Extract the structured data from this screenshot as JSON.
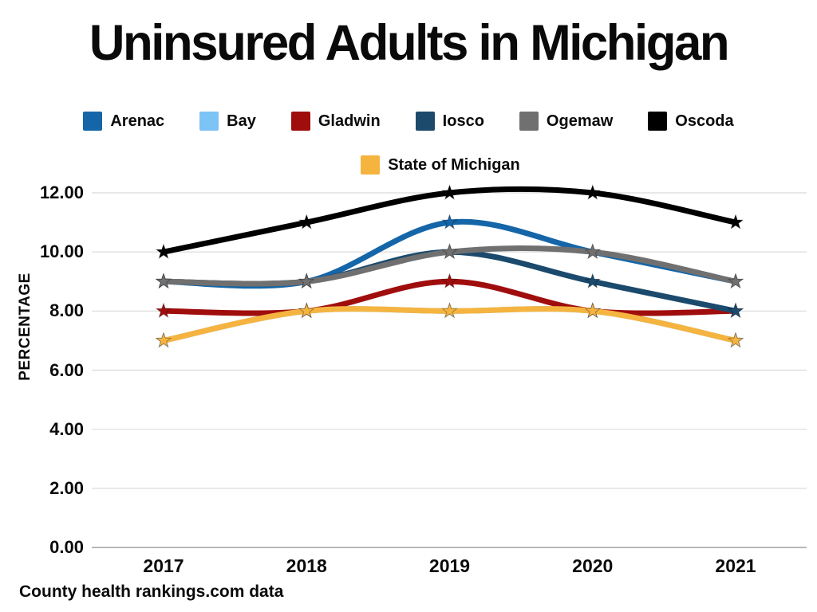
{
  "page": {
    "title": "Uninsured Adults in Michigan",
    "footer": "County health rankings.com data"
  },
  "chart_data": {
    "type": "line",
    "title": "Uninsured Adults in Michigan",
    "xlabel": "",
    "ylabel": "PERCENTAGE",
    "categories": [
      "2017",
      "2018",
      "2019",
      "2020",
      "2021"
    ],
    "y_ticks": [
      12,
      10,
      8,
      6,
      4,
      2,
      0
    ],
    "y_tick_labels": [
      "12.00",
      "10.00",
      "8.00",
      "6.00",
      "4.00",
      "2.00",
      "0.00"
    ],
    "ylim": [
      0,
      12
    ],
    "grid": true,
    "smooth": true,
    "marker": "star",
    "legend_position": "top",
    "legend_rows": [
      [
        "Arenac",
        "Bay",
        "Gladwin",
        "Iosco",
        "Ogemaw",
        "Oscoda"
      ],
      [
        "State of Michigan"
      ]
    ],
    "series": [
      {
        "name": "Arenac",
        "color": "#1566A8",
        "values": [
          9,
          9,
          11,
          10,
          9
        ]
      },
      {
        "name": "Bay",
        "color": "#7CC3F6",
        "values": [
          7,
          8,
          8,
          8,
          7
        ],
        "hidden_behind": "State of Michigan"
      },
      {
        "name": "Gladwin",
        "color": "#A00D0D",
        "values": [
          8,
          8,
          9,
          8,
          8
        ]
      },
      {
        "name": "Iosco",
        "color": "#1B4A6D",
        "values": [
          9,
          9,
          10,
          9,
          8
        ]
      },
      {
        "name": "Ogemaw",
        "color": "#707070",
        "values": [
          9,
          9,
          10,
          10,
          9
        ]
      },
      {
        "name": "Oscoda",
        "color": "#000000",
        "values": [
          10,
          11,
          12,
          12,
          11
        ]
      },
      {
        "name": "State of Michigan",
        "color": "#F5B440",
        "values": [
          7,
          8,
          8,
          8,
          7
        ]
      }
    ],
    "colors": {
      "gridline": "#D9D9D9",
      "axis_line": "#A0A0A0",
      "text": "#0A0A0A"
    }
  }
}
